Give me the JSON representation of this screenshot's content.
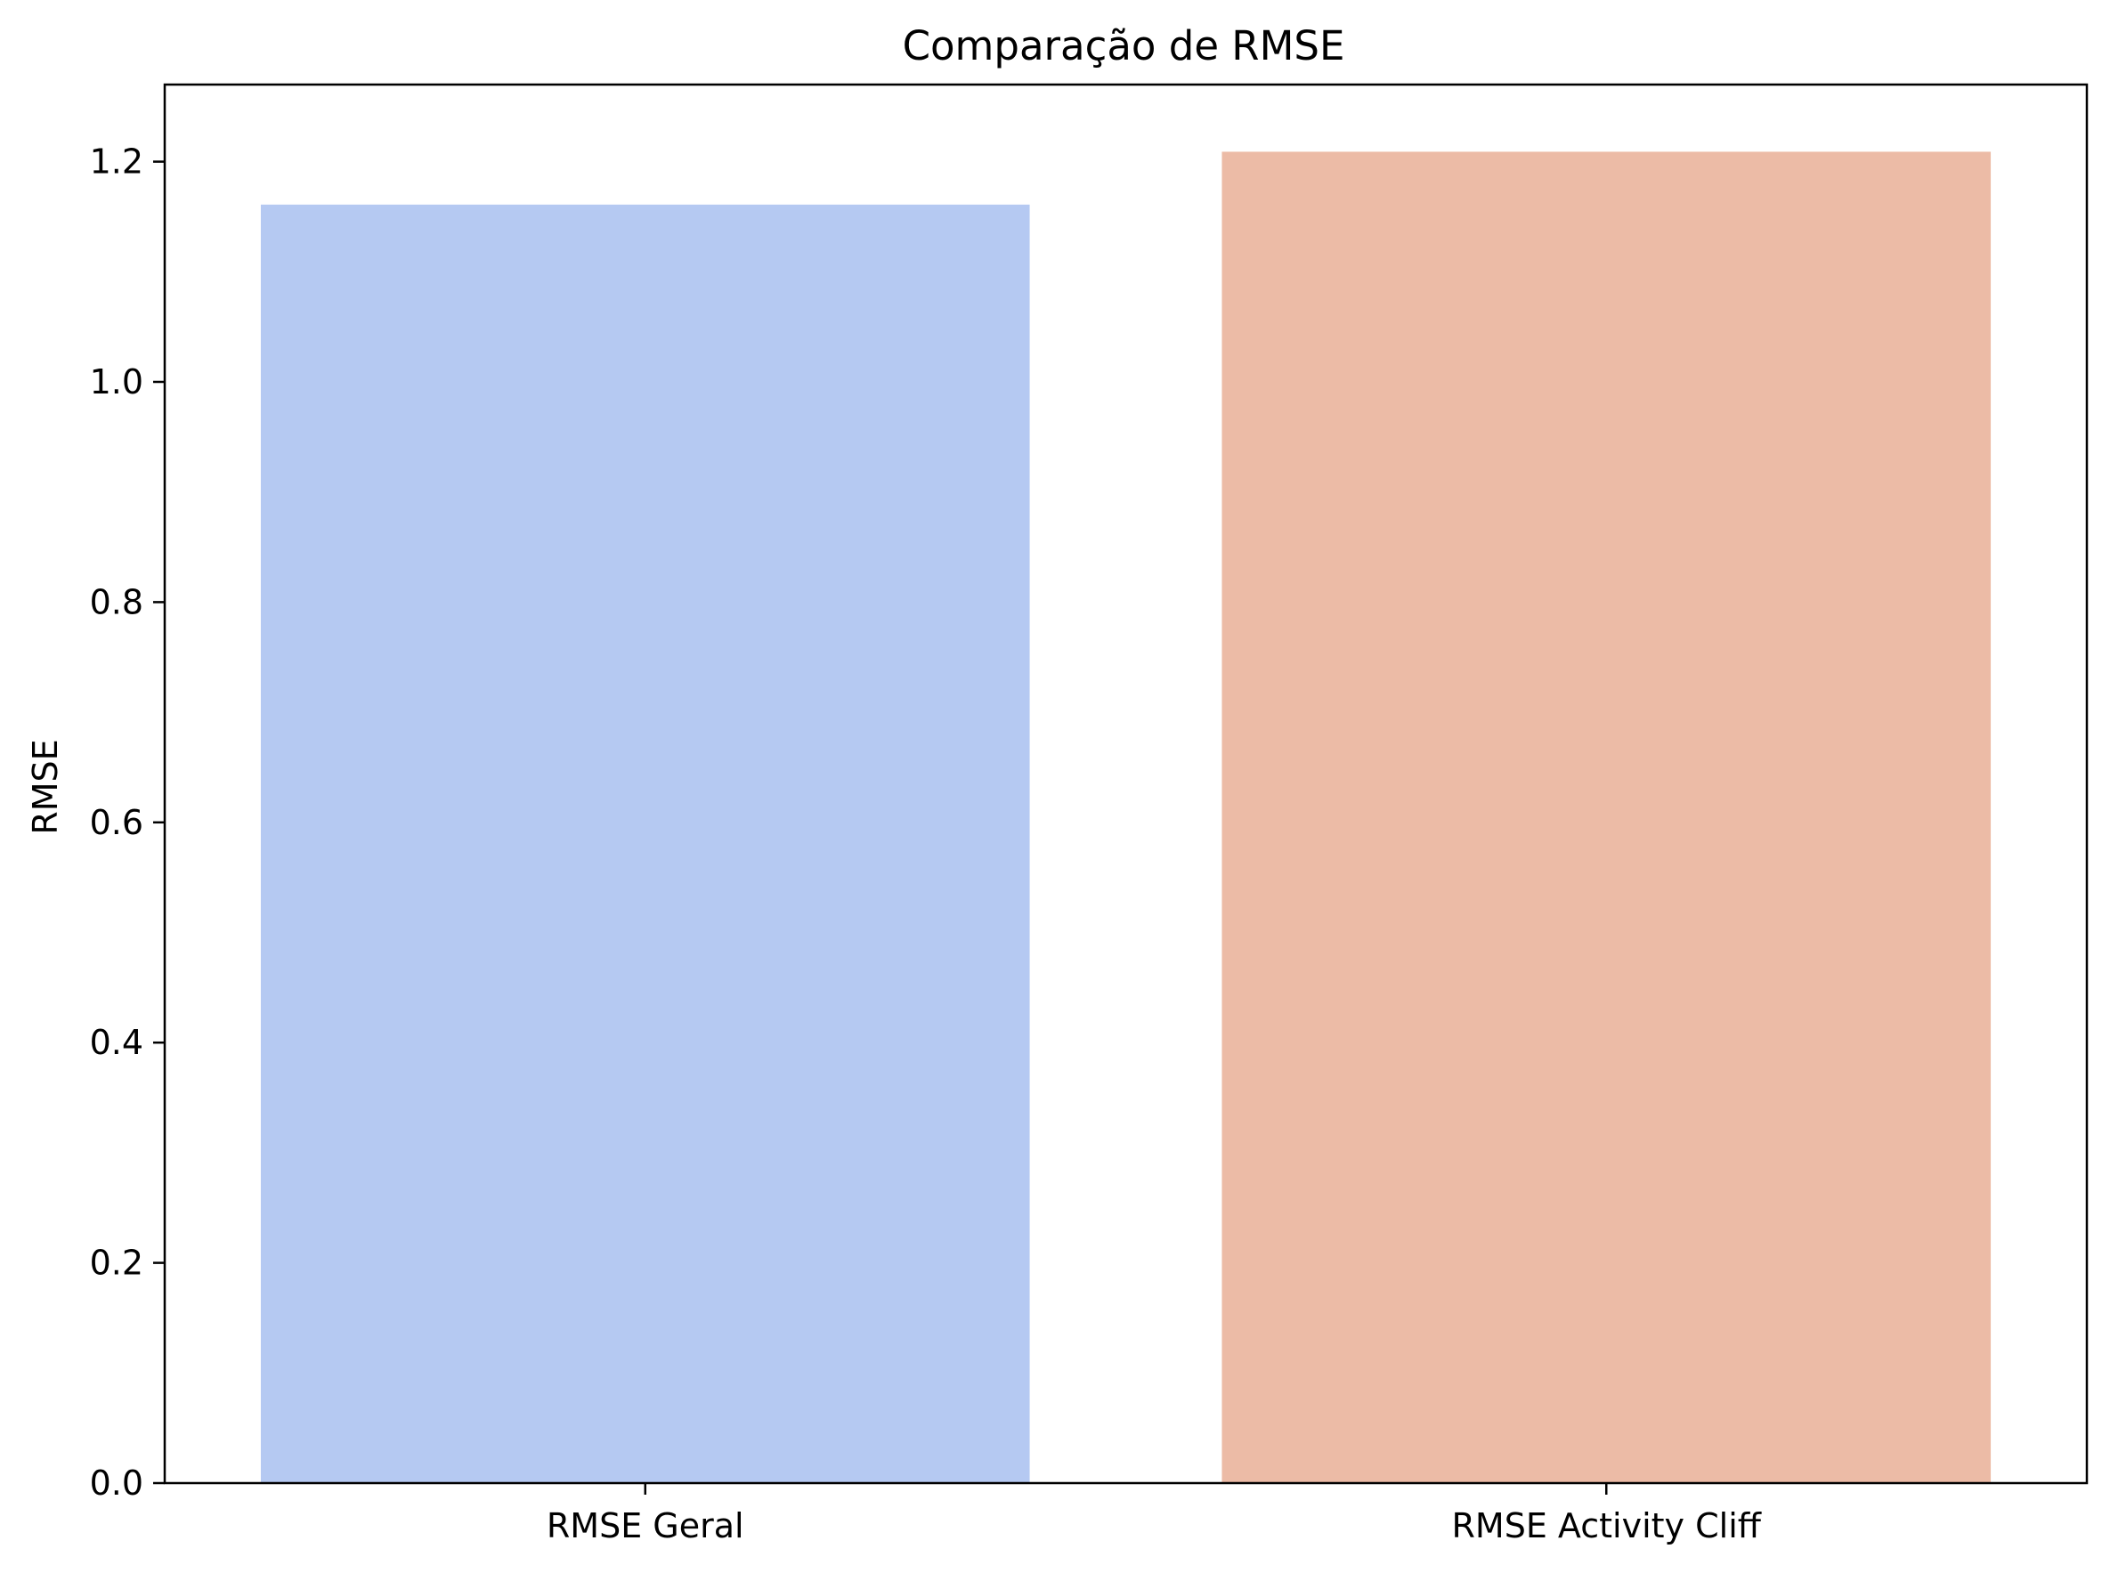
{
  "chart_data": {
    "type": "bar",
    "title": "Comparação de RMSE",
    "xlabel": "",
    "ylabel": "RMSE",
    "categories": [
      "RMSE Geral",
      "RMSE Activity Cliff"
    ],
    "values": [
      1.161,
      1.209
    ],
    "colors": [
      "#b5c9f2",
      "#ecbba6"
    ],
    "ylim": [
      0,
      1.27
    ],
    "yticks": [
      0.0,
      0.2,
      0.4,
      0.6,
      0.8,
      1.0,
      1.2
    ],
    "ytick_labels": [
      "0.0",
      "0.2",
      "0.4",
      "0.6",
      "0.8",
      "1.0",
      "1.2"
    ],
    "grid": false,
    "legend": "none"
  }
}
